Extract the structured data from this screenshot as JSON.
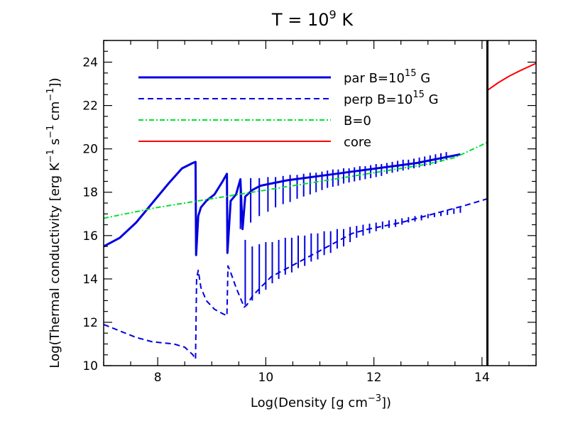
{
  "chart_data": {
    "type": "line",
    "title": {
      "prefix": "T = 10",
      "sup": "9",
      "suffix": " K"
    },
    "xlabel": {
      "prefix": "Log(Density [g cm",
      "sup": "−3",
      "suffix": "])"
    },
    "ylabel": {
      "part1": "Log(Thermal conductivity [erg K",
      "sup1": "−1",
      "part2": " s",
      "sup2": "−1",
      "part3": " cm",
      "sup3": "−1",
      "part4": "])"
    },
    "xlim": [
      7,
      15
    ],
    "ylim": [
      10,
      25
    ],
    "x_ticks": [
      8,
      10,
      12,
      14
    ],
    "y_ticks": [
      10,
      12,
      14,
      16,
      18,
      20,
      22,
      24
    ],
    "x_tick_labels": [
      "8",
      "10",
      "12",
      "14"
    ],
    "y_tick_labels": [
      "10",
      "12",
      "14",
      "16",
      "18",
      "20",
      "22",
      "24"
    ],
    "grid": false,
    "legend_placement": "top-left",
    "vertical_line_x": 14.1,
    "series": [
      {
        "id": "par",
        "legend": {
          "prefix": "par   B=10",
          "sup": "15",
          "suffix": " G"
        },
        "color": "#0000e0",
        "style": "solid",
        "width": 3,
        "x": [
          7.0,
          7.3,
          7.6,
          7.9,
          8.2,
          8.45,
          8.65,
          8.7,
          8.71,
          8.75,
          8.8,
          8.9,
          9.05,
          9.2,
          9.28,
          9.29,
          9.35,
          9.45,
          9.53,
          9.57,
          9.62,
          9.75,
          9.9,
          10.1,
          10.4,
          10.7,
          11.0,
          11.3,
          11.6,
          11.9,
          12.2,
          12.5,
          12.8,
          13.1,
          13.4,
          13.6
        ],
        "y": [
          15.5,
          15.9,
          16.6,
          17.5,
          18.4,
          19.1,
          19.35,
          19.4,
          15.1,
          16.9,
          17.3,
          17.6,
          17.9,
          18.5,
          18.85,
          15.2,
          17.6,
          17.9,
          18.6,
          16.3,
          17.8,
          18.1,
          18.3,
          18.4,
          18.55,
          18.65,
          18.75,
          18.85,
          18.95,
          19.05,
          19.15,
          19.25,
          19.35,
          19.5,
          19.65,
          19.75
        ],
        "spikes": [
          [
            9.53,
            18.6,
            16.3
          ],
          [
            9.72,
            18.65,
            16.6
          ],
          [
            9.88,
            18.65,
            16.9
          ],
          [
            10.04,
            18.7,
            17.1
          ],
          [
            10.18,
            18.7,
            17.3
          ],
          [
            10.32,
            18.75,
            17.45
          ],
          [
            10.45,
            18.8,
            17.55
          ],
          [
            10.58,
            18.8,
            17.7
          ],
          [
            10.7,
            18.85,
            17.8
          ],
          [
            10.82,
            18.9,
            17.9
          ],
          [
            10.93,
            18.9,
            18.0
          ],
          [
            11.04,
            18.95,
            18.1
          ],
          [
            11.14,
            19.0,
            18.2
          ],
          [
            11.24,
            19.05,
            18.25
          ],
          [
            11.34,
            19.05,
            18.3
          ],
          [
            11.44,
            19.1,
            18.4
          ],
          [
            11.54,
            19.1,
            18.45
          ],
          [
            11.64,
            19.15,
            18.5
          ],
          [
            11.74,
            19.2,
            18.55
          ],
          [
            11.84,
            19.2,
            18.6
          ],
          [
            11.94,
            19.25,
            18.65
          ],
          [
            12.04,
            19.3,
            18.7
          ],
          [
            12.14,
            19.3,
            18.75
          ],
          [
            12.24,
            19.35,
            18.85
          ],
          [
            12.34,
            19.4,
            18.9
          ],
          [
            12.44,
            19.45,
            18.95
          ],
          [
            12.54,
            19.5,
            19.0
          ],
          [
            12.64,
            19.5,
            19.05
          ],
          [
            12.74,
            19.55,
            19.1
          ],
          [
            12.84,
            19.6,
            19.15
          ],
          [
            12.94,
            19.65,
            19.2
          ],
          [
            13.04,
            19.7,
            19.25
          ],
          [
            13.14,
            19.75,
            19.3
          ],
          [
            13.24,
            19.8,
            19.4
          ],
          [
            13.34,
            19.85,
            19.5
          ]
        ]
      },
      {
        "id": "perp",
        "legend": {
          "prefix": "perp  B=10",
          "sup": "15",
          "suffix": " G"
        },
        "color": "#0000e0",
        "style": "dashed",
        "width": 2,
        "x": [
          7.0,
          7.3,
          7.6,
          7.9,
          8.1,
          8.3,
          8.5,
          8.65,
          8.7,
          8.72,
          8.75,
          8.8,
          8.9,
          9.05,
          9.2,
          9.28,
          9.3,
          9.35,
          9.45,
          9.55,
          9.6,
          9.65,
          9.75,
          9.9,
          10.1,
          10.4,
          10.7,
          11.0,
          11.3,
          11.6,
          11.9,
          12.2,
          12.5,
          12.8,
          13.1,
          13.4,
          13.7,
          14.1
        ],
        "y": [
          11.9,
          11.6,
          11.3,
          11.1,
          11.05,
          11.0,
          10.85,
          10.5,
          10.3,
          14.0,
          14.4,
          13.6,
          13.0,
          12.6,
          12.4,
          12.3,
          14.6,
          14.3,
          13.6,
          13.0,
          12.7,
          12.8,
          13.2,
          13.6,
          14.1,
          14.5,
          14.9,
          15.3,
          15.7,
          16.1,
          16.3,
          16.45,
          16.6,
          16.8,
          17.0,
          17.2,
          17.4,
          17.7
        ],
        "spikes": [
          [
            9.62,
            15.8,
            12.8
          ],
          [
            9.75,
            15.5,
            13.0
          ],
          [
            9.88,
            15.6,
            13.3
          ],
          [
            10.0,
            15.7,
            13.5
          ],
          [
            10.12,
            15.7,
            13.8
          ],
          [
            10.24,
            15.8,
            14.0
          ],
          [
            10.36,
            15.9,
            14.2
          ],
          [
            10.48,
            15.9,
            14.3
          ],
          [
            10.6,
            16.0,
            14.5
          ],
          [
            10.72,
            16.0,
            14.6
          ],
          [
            10.84,
            16.1,
            14.8
          ],
          [
            10.96,
            16.1,
            14.9
          ],
          [
            11.08,
            16.2,
            15.1
          ],
          [
            11.2,
            16.2,
            15.2
          ],
          [
            11.32,
            16.3,
            15.4
          ],
          [
            11.44,
            16.3,
            15.5
          ],
          [
            11.56,
            16.4,
            15.7
          ],
          [
            11.68,
            16.45,
            15.9
          ],
          [
            11.8,
            16.5,
            16.0
          ],
          [
            11.92,
            16.55,
            16.1
          ],
          [
            12.04,
            16.6,
            16.2
          ],
          [
            12.16,
            16.65,
            16.3
          ],
          [
            12.28,
            16.7,
            16.35
          ],
          [
            12.4,
            16.75,
            16.4
          ],
          [
            12.52,
            16.8,
            16.5
          ],
          [
            12.64,
            16.85,
            16.6
          ],
          [
            12.76,
            16.9,
            16.65
          ],
          [
            12.88,
            16.95,
            16.7
          ],
          [
            13.0,
            17.0,
            16.8
          ],
          [
            13.12,
            17.05,
            16.85
          ],
          [
            13.24,
            17.1,
            16.9
          ],
          [
            13.36,
            17.2,
            16.95
          ],
          [
            13.48,
            17.25,
            17.0
          ],
          [
            13.6,
            17.3,
            17.05
          ]
        ]
      },
      {
        "id": "b0",
        "legend": {
          "prefix": "B=0",
          "sup": "",
          "suffix": ""
        },
        "color": "#00e030",
        "style": "dashdot",
        "width": 2,
        "x": [
          7.0,
          7.5,
          8.0,
          8.5,
          9.0,
          9.5,
          10.0,
          10.5,
          11.0,
          11.5,
          12.0,
          12.5,
          13.0,
          13.5,
          14.1
        ],
        "y": [
          16.8,
          17.05,
          17.3,
          17.5,
          17.7,
          17.9,
          18.1,
          18.3,
          18.5,
          18.7,
          18.9,
          19.1,
          19.3,
          19.6,
          20.3
        ]
      },
      {
        "id": "core",
        "legend": {
          "prefix": "core",
          "sup": "",
          "suffix": ""
        },
        "color": "#ff0000",
        "style": "solid",
        "width": 2,
        "x": [
          14.1,
          14.3,
          14.5,
          14.7,
          15.0
        ],
        "y": [
          22.7,
          23.05,
          23.35,
          23.6,
          23.95
        ]
      }
    ]
  }
}
